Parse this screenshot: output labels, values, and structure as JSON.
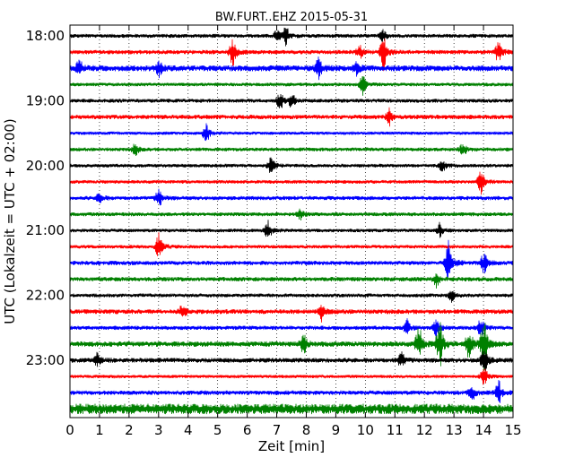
{
  "chart_data": {
    "type": "line",
    "title": "BW.FURT..EHZ 2015-05-31",
    "xlabel": "Zeit  [min]",
    "ylabel": "UTC (Lokalzeit = UTC + 02:00)",
    "xlim": [
      0,
      15
    ],
    "x_ticks": [
      0,
      1,
      2,
      3,
      4,
      5,
      6,
      7,
      8,
      9,
      10,
      11,
      12,
      13,
      14,
      15
    ],
    "x_tick_labels": [
      "0",
      "1",
      "2",
      "3",
      "4",
      "5",
      "6",
      "7",
      "8",
      "9",
      "10",
      "11",
      "12",
      "13",
      "14",
      "15"
    ],
    "y_tick_labels": [
      "18:00",
      "19:00",
      "20:00",
      "21:00",
      "22:00",
      "23:00"
    ],
    "grid": "vertical dotted",
    "trace_minutes": 15,
    "series_colors": [
      "#000000",
      "#ff0000",
      "#0000ff",
      "#008000"
    ],
    "series": [
      {
        "start": "18:00",
        "color": "#000000",
        "noise": 2.2,
        "events": [
          [
            7.0,
            5
          ],
          [
            7.3,
            8
          ],
          [
            10.6,
            6
          ]
        ]
      },
      {
        "start": "18:15",
        "color": "#ff0000",
        "noise": 2.4,
        "events": [
          [
            5.5,
            13
          ],
          [
            9.8,
            6
          ],
          [
            10.6,
            15
          ],
          [
            14.5,
            10
          ]
        ]
      },
      {
        "start": "18:30",
        "color": "#0000ff",
        "noise": 3.3,
        "events": [
          [
            0.3,
            8
          ],
          [
            3.0,
            6
          ],
          [
            8.4,
            9
          ],
          [
            9.7,
            5
          ]
        ]
      },
      {
        "start": "18:45",
        "color": "#008000",
        "noise": 2.0,
        "events": [
          [
            9.9,
            9
          ]
        ]
      },
      {
        "start": "19:00",
        "color": "#000000",
        "noise": 2.2,
        "events": [
          [
            7.1,
            8
          ],
          [
            7.5,
            6
          ]
        ]
      },
      {
        "start": "19:15",
        "color": "#ff0000",
        "noise": 2.5,
        "events": [
          [
            10.8,
            7
          ]
        ]
      },
      {
        "start": "19:30",
        "color": "#0000ff",
        "noise": 1.8,
        "events": [
          [
            4.6,
            9
          ]
        ]
      },
      {
        "start": "19:45",
        "color": "#008000",
        "noise": 2.1,
        "events": [
          [
            2.2,
            5
          ],
          [
            13.3,
            6
          ]
        ]
      },
      {
        "start": "20:00",
        "color": "#000000",
        "noise": 2.0,
        "events": [
          [
            6.8,
            8
          ],
          [
            12.6,
            6
          ]
        ]
      },
      {
        "start": "20:15",
        "color": "#ff0000",
        "noise": 2.0,
        "events": [
          [
            13.9,
            11
          ]
        ]
      },
      {
        "start": "20:30",
        "color": "#0000ff",
        "noise": 2.3,
        "events": [
          [
            1.0,
            5
          ],
          [
            3.0,
            8
          ]
        ]
      },
      {
        "start": "20:45",
        "color": "#008000",
        "noise": 2.2,
        "events": [
          [
            7.8,
            5
          ]
        ]
      },
      {
        "start": "21:00",
        "color": "#000000",
        "noise": 2.0,
        "events": [
          [
            6.7,
            8
          ],
          [
            12.5,
            6
          ]
        ]
      },
      {
        "start": "21:15",
        "color": "#ff0000",
        "noise": 2.0,
        "events": [
          [
            3.0,
            12
          ]
        ]
      },
      {
        "start": "21:30",
        "color": "#0000ff",
        "noise": 2.4,
        "events": [
          [
            12.8,
            22
          ],
          [
            14.0,
            10
          ]
        ]
      },
      {
        "start": "21:45",
        "color": "#008000",
        "noise": 2.5,
        "events": [
          [
            12.4,
            6
          ]
        ]
      },
      {
        "start": "22:00",
        "color": "#000000",
        "noise": 2.1,
        "events": [
          [
            12.9,
            5
          ]
        ]
      },
      {
        "start": "22:15",
        "color": "#ff0000",
        "noise": 2.7,
        "events": [
          [
            3.8,
            6
          ],
          [
            8.5,
            8
          ]
        ]
      },
      {
        "start": "22:30",
        "color": "#0000ff",
        "noise": 2.3,
        "events": [
          [
            11.4,
            7
          ],
          [
            12.4,
            9
          ],
          [
            13.9,
            8
          ]
        ]
      },
      {
        "start": "22:45",
        "color": "#008000",
        "noise": 3.0,
        "events": [
          [
            7.9,
            8
          ],
          [
            11.8,
            17
          ],
          [
            12.5,
            22
          ],
          [
            13.5,
            15
          ],
          [
            14.0,
            22
          ]
        ]
      },
      {
        "start": "23:00",
        "color": "#000000",
        "noise": 2.7,
        "events": [
          [
            0.9,
            6
          ],
          [
            11.2,
            7
          ],
          [
            14.0,
            14
          ]
        ]
      },
      {
        "start": "23:15",
        "color": "#ff0000",
        "noise": 1.8,
        "events": [
          [
            14.0,
            10
          ]
        ]
      },
      {
        "start": "23:30",
        "color": "#0000ff",
        "noise": 2.5,
        "events": [
          [
            13.6,
            7
          ],
          [
            14.5,
            10
          ]
        ]
      },
      {
        "start": "23:45",
        "color": "#008000",
        "noise": 5.8,
        "events": []
      }
    ]
  }
}
